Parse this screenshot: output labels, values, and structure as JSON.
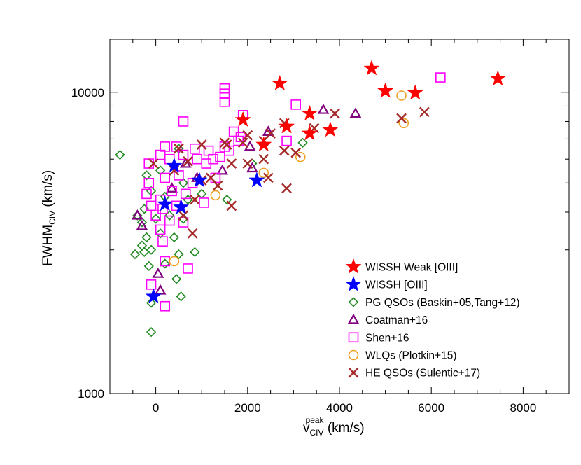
{
  "chart_data": {
    "type": "scatter",
    "title": "",
    "xlabel": {
      "base": "v",
      "sup": "peak",
      "sub": "CIV",
      "unit": " (km/s)"
    },
    "ylabel": {
      "base": "FWHM",
      "sub": "CIV",
      "unit": " (km/s)"
    },
    "xlim": [
      -1000,
      9000
    ],
    "ylim": [
      1000,
      15000
    ],
    "yscale": "log",
    "xticks": [
      0,
      2000,
      4000,
      6000,
      8000
    ],
    "xtick_labels": [
      "0",
      "2000",
      "4000",
      "6000",
      "8000"
    ],
    "yticks": [
      1000,
      10000
    ],
    "ytick_labels": [
      "1000",
      "10000"
    ],
    "legend_position": "bottom-right",
    "series": [
      {
        "name": "WISSH Weak [OIII]",
        "marker": "star",
        "color": "#ff0000",
        "points": [
          [
            4700,
            12000
          ],
          [
            7450,
            11100
          ],
          [
            2700,
            10700
          ],
          [
            5000,
            10100
          ],
          [
            5650,
            9950
          ],
          [
            3350,
            8500
          ],
          [
            1900,
            8100
          ],
          [
            2850,
            7700
          ],
          [
            3350,
            7300
          ],
          [
            3800,
            7500
          ],
          [
            2350,
            6700
          ]
        ]
      },
      {
        "name": "WISSH [OIII]",
        "marker": "star",
        "color": "#0000ff",
        "points": [
          [
            400,
            5700
          ],
          [
            950,
            5100
          ],
          [
            2200,
            5100
          ],
          [
            200,
            4250
          ],
          [
            550,
            4150
          ],
          [
            -50,
            2100
          ]
        ]
      },
      {
        "name": "PG QSOs (Baskin+05,Tang+12)",
        "marker": "diamond",
        "color": "#228b22",
        "points": [
          [
            -780,
            6200
          ],
          [
            -200,
            5300
          ],
          [
            100,
            5500
          ],
          [
            500,
            6500
          ],
          [
            600,
            5000
          ],
          [
            -100,
            4700
          ],
          [
            200,
            4500
          ],
          [
            700,
            4400
          ],
          [
            -400,
            3900
          ],
          [
            -300,
            3700
          ],
          [
            0,
            3800
          ],
          [
            300,
            3900
          ],
          [
            600,
            3800
          ],
          [
            -200,
            3300
          ],
          [
            100,
            3400
          ],
          [
            400,
            3300
          ],
          [
            -450,
            2900
          ],
          [
            -250,
            2950
          ],
          [
            -100,
            3000
          ],
          [
            200,
            2700
          ],
          [
            500,
            2900
          ],
          [
            850,
            2950
          ],
          [
            -300,
            3100
          ],
          [
            450,
            2400
          ],
          [
            -150,
            2650
          ],
          [
            550,
            2100
          ],
          [
            -100,
            2000
          ],
          [
            -100,
            1600
          ],
          [
            1550,
            4400
          ],
          [
            2100,
            5800
          ],
          [
            3200,
            6800
          ],
          [
            1000,
            4600
          ],
          [
            -250,
            4100
          ]
        ]
      },
      {
        "name": "Coatman+16",
        "marker": "triangle",
        "color": "#800080",
        "points": [
          [
            3650,
            8750
          ],
          [
            4350,
            8500
          ],
          [
            2450,
            7400
          ],
          [
            2050,
            6600
          ],
          [
            1450,
            5500
          ],
          [
            2100,
            5600
          ],
          [
            -400,
            3900
          ],
          [
            -300,
            3600
          ],
          [
            350,
            4800
          ],
          [
            650,
            5800
          ],
          [
            900,
            5200
          ],
          [
            50,
            2500
          ],
          [
            100,
            2200
          ]
        ]
      },
      {
        "name": "Shen+16",
        "marker": "square",
        "color": "#ff00ff",
        "points": [
          [
            6200,
            11200
          ],
          [
            1500,
            10300
          ],
          [
            1500,
            9900
          ],
          [
            1500,
            9300
          ],
          [
            1900,
            8400
          ],
          [
            3050,
            9100
          ],
          [
            600,
            8000
          ],
          [
            1700,
            7400
          ],
          [
            1850,
            7100
          ],
          [
            2850,
            6900
          ],
          [
            200,
            6600
          ],
          [
            450,
            6600
          ],
          [
            850,
            6500
          ],
          [
            1150,
            6400
          ],
          [
            1500,
            6600
          ],
          [
            -150,
            5800
          ],
          [
            100,
            6200
          ],
          [
            300,
            6000
          ],
          [
            600,
            6200
          ],
          [
            1100,
            5800
          ],
          [
            1250,
            6000
          ],
          [
            1400,
            6100
          ],
          [
            -150,
            5000
          ],
          [
            200,
            5200
          ],
          [
            500,
            5300
          ],
          [
            800,
            5000
          ],
          [
            -200,
            4600
          ],
          [
            100,
            4400
          ],
          [
            350,
            4700
          ],
          [
            650,
            4600
          ],
          [
            -100,
            4200
          ],
          [
            150,
            4100
          ],
          [
            450,
            4200
          ],
          [
            0,
            3900
          ],
          [
            300,
            3750
          ],
          [
            600,
            3700
          ],
          [
            100,
            3500
          ],
          [
            150,
            3200
          ],
          [
            200,
            2750
          ],
          [
            700,
            2600
          ],
          [
            -100,
            2300
          ],
          [
            200,
            1950
          ],
          [
            1050,
            4300
          ],
          [
            1600,
            6400
          ],
          [
            1800,
            6900
          ],
          [
            900,
            6000
          ],
          [
            1300,
            5200
          ]
        ]
      },
      {
        "name": "WLQs (Plotkin+15)",
        "marker": "circle",
        "color": "#f0a020",
        "points": [
          [
            5350,
            9750
          ],
          [
            5400,
            7900
          ],
          [
            3150,
            6100
          ],
          [
            1300,
            4550
          ],
          [
            400,
            2750
          ],
          [
            2350,
            5400
          ]
        ]
      },
      {
        "name": "HE QSOs (Sulentic+17)",
        "marker": "x",
        "color": "#a52a2a",
        "points": [
          [
            5850,
            8600
          ],
          [
            5350,
            8200
          ],
          [
            3900,
            8500
          ],
          [
            2800,
            7900
          ],
          [
            3450,
            7600
          ],
          [
            2500,
            7300
          ],
          [
            2000,
            7200
          ],
          [
            2350,
            6900
          ],
          [
            1900,
            6800
          ],
          [
            1500,
            6800
          ],
          [
            1000,
            6700
          ],
          [
            2800,
            6400
          ],
          [
            3050,
            6300
          ],
          [
            2000,
            5800
          ],
          [
            2350,
            6000
          ],
          [
            1650,
            5800
          ],
          [
            1550,
            6700
          ],
          [
            500,
            6500
          ],
          [
            700,
            5900
          ],
          [
            400,
            5500
          ],
          [
            1200,
            5200
          ],
          [
            2450,
            5200
          ],
          [
            2850,
            4800
          ],
          [
            1650,
            4200
          ],
          [
            850,
            4400
          ],
          [
            800,
            3400
          ],
          [
            1000,
            5100
          ],
          [
            1350,
            4900
          ],
          [
            600,
            3900
          ],
          [
            -50,
            5800
          ]
        ]
      }
    ]
  }
}
